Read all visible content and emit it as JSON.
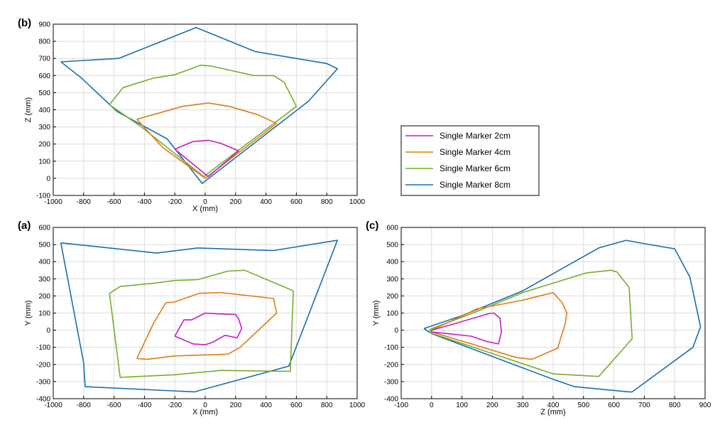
{
  "legend": [
    {
      "label": "Single Marker 2cm",
      "color": "#c21fc7"
    },
    {
      "label": "Single Marker 4cm",
      "color": "#e07b13"
    },
    {
      "label": "Single Marker 6cm",
      "color": "#77ad2c"
    },
    {
      "label": "Single Marker 8cm",
      "color": "#1a6faf"
    }
  ],
  "chart_data": [
    {
      "panel": "(b)",
      "type": "line",
      "xlabel": "X (mm)",
      "ylabel": "Z (mm)",
      "xlim": [
        -1000,
        1000
      ],
      "ylim": [
        -100,
        900
      ],
      "xticks": [
        -1000,
        -800,
        -600,
        -400,
        -200,
        0,
        200,
        400,
        600,
        800,
        1000
      ],
      "yticks": [
        -100,
        0,
        100,
        200,
        300,
        400,
        500,
        600,
        700,
        800,
        900
      ],
      "grid": true,
      "series": [
        {
          "name": "Single Marker 8cm",
          "points": [
            [
              -950,
              680
            ],
            [
              -570,
              700
            ],
            [
              -60,
              880
            ],
            [
              330,
              740
            ],
            [
              800,
              670
            ],
            [
              870,
              640
            ],
            [
              800,
              570
            ],
            [
              680,
              450
            ],
            [
              -20,
              -30
            ],
            [
              -250,
              230
            ],
            [
              -580,
              390
            ],
            [
              -820,
              590
            ],
            [
              -950,
              680
            ]
          ]
        },
        {
          "name": "Single Marker 6cm",
          "points": [
            [
              -630,
              430
            ],
            [
              -540,
              530
            ],
            [
              -340,
              585
            ],
            [
              -200,
              605
            ],
            [
              -30,
              660
            ],
            [
              40,
              655
            ],
            [
              320,
              600
            ],
            [
              450,
              600
            ],
            [
              520,
              560
            ],
            [
              600,
              420
            ],
            [
              -10,
              10
            ],
            [
              -420,
              300
            ],
            [
              -630,
              430
            ]
          ]
        },
        {
          "name": "Single Marker 4cm",
          "points": [
            [
              -450,
              345
            ],
            [
              -150,
              420
            ],
            [
              20,
              440
            ],
            [
              160,
              420
            ],
            [
              350,
              370
            ],
            [
              470,
              320
            ],
            [
              0,
              0
            ],
            [
              -280,
              180
            ],
            [
              -450,
              345
            ]
          ]
        },
        {
          "name": "Single Marker 2cm",
          "points": [
            [
              -200,
              170
            ],
            [
              -80,
              215
            ],
            [
              20,
              222
            ],
            [
              100,
              205
            ],
            [
              220,
              160
            ],
            [
              20,
              10
            ],
            [
              -200,
              170
            ]
          ]
        }
      ]
    },
    {
      "panel": "(a)",
      "type": "line",
      "xlabel": "X (mm)",
      "ylabel": "Y (mm)",
      "xlim": [
        -1000,
        1000
      ],
      "ylim": [
        -400,
        600
      ],
      "xticks": [
        -1000,
        -800,
        -600,
        -400,
        -200,
        0,
        200,
        400,
        600,
        800,
        1000
      ],
      "yticks": [
        -400,
        -300,
        -200,
        -100,
        0,
        100,
        200,
        300,
        400,
        500,
        600
      ],
      "grid": true,
      "series": [
        {
          "name": "Single Marker 8cm",
          "points": [
            [
              -950,
              510
            ],
            [
              -320,
              450
            ],
            [
              -50,
              480
            ],
            [
              450,
              465
            ],
            [
              870,
              525
            ],
            [
              550,
              -210
            ],
            [
              -70,
              -360
            ],
            [
              -790,
              -330
            ],
            [
              -800,
              -190
            ],
            [
              -950,
              510
            ]
          ]
        },
        {
          "name": "Single Marker 6cm",
          "points": [
            [
              -630,
              215
            ],
            [
              -560,
              255
            ],
            [
              -330,
              275
            ],
            [
              -200,
              290
            ],
            [
              -50,
              295
            ],
            [
              150,
              345
            ],
            [
              260,
              350
            ],
            [
              580,
              230
            ],
            [
              560,
              -240
            ],
            [
              520,
              -240
            ],
            [
              100,
              -235
            ],
            [
              -200,
              -260
            ],
            [
              -560,
              -275
            ],
            [
              -630,
              215
            ]
          ]
        },
        {
          "name": "Single Marker 4cm",
          "points": [
            [
              -450,
              -165
            ],
            [
              -340,
              40
            ],
            [
              -260,
              160
            ],
            [
              -200,
              165
            ],
            [
              -40,
              215
            ],
            [
              100,
              220
            ],
            [
              450,
              185
            ],
            [
              470,
              100
            ],
            [
              230,
              -100
            ],
            [
              150,
              -140
            ],
            [
              -200,
              -150
            ],
            [
              -380,
              -170
            ],
            [
              -450,
              -165
            ]
          ]
        },
        {
          "name": "Single Marker 2cm",
          "points": [
            [
              -200,
              -35
            ],
            [
              -140,
              60
            ],
            [
              -90,
              60
            ],
            [
              0,
              100
            ],
            [
              90,
              95
            ],
            [
              200,
              92
            ],
            [
              220,
              65
            ],
            [
              240,
              10
            ],
            [
              210,
              -45
            ],
            [
              130,
              -30
            ],
            [
              50,
              -70
            ],
            [
              0,
              -85
            ],
            [
              -80,
              -80
            ],
            [
              -200,
              -35
            ]
          ]
        }
      ]
    },
    {
      "panel": "(c)",
      "type": "line",
      "xlabel": "Z (mm)",
      "ylabel": "Y (mm)",
      "xlim": [
        -100,
        900
      ],
      "ylim": [
        -400,
        600
      ],
      "xticks": [
        -100,
        0,
        100,
        200,
        300,
        400,
        500,
        600,
        700,
        800,
        900
      ],
      "yticks": [
        -400,
        -300,
        -200,
        -100,
        0,
        100,
        200,
        300,
        400,
        500,
        600
      ],
      "grid": true,
      "series": [
        {
          "name": "Single Marker 8cm",
          "points": [
            [
              -25,
              10
            ],
            [
              100,
              85
            ],
            [
              300,
              230
            ],
            [
              550,
              480
            ],
            [
              640,
              525
            ],
            [
              700,
              505
            ],
            [
              800,
              475
            ],
            [
              850,
              310
            ],
            [
              885,
              20
            ],
            [
              860,
              -100
            ],
            [
              660,
              -360
            ],
            [
              650,
              -360
            ],
            [
              470,
              -330
            ],
            [
              390,
              -280
            ],
            [
              0,
              -20
            ],
            [
              -25,
              10
            ]
          ]
        },
        {
          "name": "Single Marker 6cm",
          "points": [
            [
              -5,
              5
            ],
            [
              150,
              110
            ],
            [
              300,
              220
            ],
            [
              510,
              335
            ],
            [
              590,
              350
            ],
            [
              610,
              340
            ],
            [
              650,
              250
            ],
            [
              660,
              -50
            ],
            [
              550,
              -270
            ],
            [
              400,
              -255
            ],
            [
              -5,
              -15
            ],
            [
              -5,
              5
            ]
          ]
        },
        {
          "name": "Single Marker 4cm",
          "points": [
            [
              0,
              0
            ],
            [
              150,
              125
            ],
            [
              300,
              175
            ],
            [
              400,
              220
            ],
            [
              430,
              160
            ],
            [
              445,
              100
            ],
            [
              440,
              40
            ],
            [
              415,
              -105
            ],
            [
              330,
              -170
            ],
            [
              280,
              -160
            ],
            [
              0,
              -10
            ],
            [
              0,
              0
            ]
          ]
        },
        {
          "name": "Single Marker 2cm",
          "points": [
            [
              0,
              0
            ],
            [
              80,
              40
            ],
            [
              190,
              98
            ],
            [
              205,
              100
            ],
            [
              225,
              70
            ],
            [
              230,
              -10
            ],
            [
              220,
              -80
            ],
            [
              180,
              -65
            ],
            [
              130,
              -35
            ],
            [
              0,
              -10
            ],
            [
              0,
              0
            ]
          ]
        }
      ]
    }
  ]
}
